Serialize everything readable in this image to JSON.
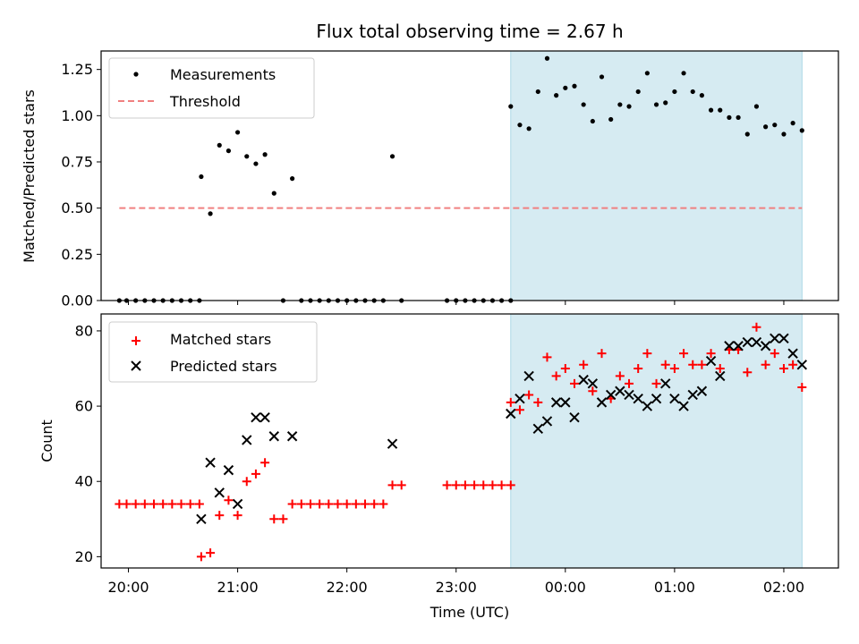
{
  "chart_data": [
    {
      "type": "scatter",
      "title": "Flux total observing time = 2.67 h",
      "ylabel": "Matched/Predicted stars",
      "xlabel": "",
      "x_unit": "time (UTC)",
      "xlim": [
        "19:45",
        "02:30"
      ],
      "ylim": [
        0,
        1.35
      ],
      "yticks": [
        "0.00",
        "0.25",
        "0.50",
        "0.75",
        "1.00",
        "1.25"
      ],
      "shaded_region": {
        "from": "23:30",
        "to": "02:10",
        "color": "#add8e6"
      },
      "legend": {
        "placement": "top-left",
        "entries": [
          "Measurements",
          "Threshold"
        ]
      },
      "grid": false,
      "series": [
        {
          "name": "Measurements",
          "marker": "dot",
          "color": "#000000",
          "points": [
            [
              "19:55",
              0
            ],
            [
              "19:59",
              0
            ],
            [
              "20:04",
              0
            ],
            [
              "20:09",
              0
            ],
            [
              "20:14",
              0
            ],
            [
              "20:19",
              0
            ],
            [
              "20:24",
              0
            ],
            [
              "20:29",
              0
            ],
            [
              "20:34",
              0
            ],
            [
              "20:39",
              0
            ],
            [
              "20:40",
              0.67
            ],
            [
              "20:45",
              0.47
            ],
            [
              "20:50",
              0.84
            ],
            [
              "20:55",
              0.81
            ],
            [
              "21:00",
              0.91
            ],
            [
              "21:05",
              0.78
            ],
            [
              "21:10",
              0.74
            ],
            [
              "21:15",
              0.79
            ],
            [
              "21:20",
              0.58
            ],
            [
              "21:25",
              0.0
            ],
            [
              "21:30",
              0.66
            ],
            [
              "21:35",
              0
            ],
            [
              "21:40",
              0
            ],
            [
              "21:45",
              0
            ],
            [
              "21:50",
              0
            ],
            [
              "21:55",
              0
            ],
            [
              "22:00",
              0
            ],
            [
              "22:05",
              0
            ],
            [
              "22:10",
              0
            ],
            [
              "22:15",
              0
            ],
            [
              "22:20",
              0
            ],
            [
              "22:25",
              0.78
            ],
            [
              "22:30",
              0
            ],
            [
              "22:55",
              0
            ],
            [
              "23:00",
              0
            ],
            [
              "23:05",
              0
            ],
            [
              "23:10",
              0
            ],
            [
              "23:15",
              0
            ],
            [
              "23:20",
              0
            ],
            [
              "23:25",
              0
            ],
            [
              "23:30",
              0
            ],
            [
              "23:30",
              1.05
            ],
            [
              "23:35",
              0.95
            ],
            [
              "23:40",
              0.93
            ],
            [
              "23:45",
              1.13
            ],
            [
              "23:50",
              1.31
            ],
            [
              "23:55",
              1.11
            ],
            [
              "00:00",
              1.15
            ],
            [
              "00:05",
              1.16
            ],
            [
              "00:10",
              1.06
            ],
            [
              "00:15",
              0.97
            ],
            [
              "00:20",
              1.21
            ],
            [
              "00:25",
              0.98
            ],
            [
              "00:30",
              1.06
            ],
            [
              "00:35",
              1.05
            ],
            [
              "00:40",
              1.13
            ],
            [
              "00:45",
              1.23
            ],
            [
              "00:50",
              1.06
            ],
            [
              "00:55",
              1.07
            ],
            [
              "01:00",
              1.13
            ],
            [
              "01:05",
              1.23
            ],
            [
              "01:10",
              1.13
            ],
            [
              "01:15",
              1.11
            ],
            [
              "01:20",
              1.03
            ],
            [
              "01:25",
              1.03
            ],
            [
              "01:30",
              0.99
            ],
            [
              "01:35",
              0.99
            ],
            [
              "01:40",
              0.9
            ],
            [
              "01:45",
              1.05
            ],
            [
              "01:50",
              0.94
            ],
            [
              "01:55",
              0.95
            ],
            [
              "02:00",
              0.9
            ],
            [
              "02:05",
              0.96
            ],
            [
              "02:10",
              0.92
            ]
          ]
        },
        {
          "name": "Threshold",
          "style": "dashed-line",
          "color": "#f08080",
          "points": [
            [
              "19:55",
              0.5
            ],
            [
              "02:10",
              0.5
            ]
          ]
        }
      ]
    },
    {
      "type": "scatter",
      "title": "",
      "ylabel": "Count",
      "xlabel": "Time (UTC)",
      "x_unit": "time (UTC)",
      "xlim": [
        "19:45",
        "02:30"
      ],
      "ylim": [
        17,
        84.5
      ],
      "yticks": [
        "20",
        "40",
        "60",
        "80"
      ],
      "xticks": [
        "20:00",
        "21:00",
        "22:00",
        "23:00",
        "00:00",
        "01:00",
        "02:00"
      ],
      "shaded_region": {
        "from": "23:30",
        "to": "02:10",
        "color": "#add8e6"
      },
      "legend": {
        "placement": "top-left",
        "entries": [
          "Matched stars",
          "Predicted stars"
        ]
      },
      "grid": false,
      "series": [
        {
          "name": "Matched stars",
          "marker": "plus",
          "color": "#ff0000",
          "points": [
            [
              "19:55",
              34
            ],
            [
              "19:59",
              34
            ],
            [
              "20:04",
              34
            ],
            [
              "20:09",
              34
            ],
            [
              "20:14",
              34
            ],
            [
              "20:19",
              34
            ],
            [
              "20:24",
              34
            ],
            [
              "20:29",
              34
            ],
            [
              "20:34",
              34
            ],
            [
              "20:39",
              34
            ],
            [
              "20:40",
              20
            ],
            [
              "20:45",
              21
            ],
            [
              "20:50",
              31
            ],
            [
              "20:55",
              35
            ],
            [
              "21:00",
              31
            ],
            [
              "21:05",
              40
            ],
            [
              "21:10",
              42
            ],
            [
              "21:15",
              45
            ],
            [
              "21:20",
              30
            ],
            [
              "21:25",
              30
            ],
            [
              "21:30",
              34
            ],
            [
              "21:35",
              34
            ],
            [
              "21:40",
              34
            ],
            [
              "21:45",
              34
            ],
            [
              "21:50",
              34
            ],
            [
              "21:55",
              34
            ],
            [
              "22:00",
              34
            ],
            [
              "22:05",
              34
            ],
            [
              "22:10",
              34
            ],
            [
              "22:15",
              34
            ],
            [
              "22:20",
              34
            ],
            [
              "22:25",
              39
            ],
            [
              "22:30",
              39
            ],
            [
              "22:55",
              39
            ],
            [
              "23:00",
              39
            ],
            [
              "23:05",
              39
            ],
            [
              "23:10",
              39
            ],
            [
              "23:15",
              39
            ],
            [
              "23:20",
              39
            ],
            [
              "23:25",
              39
            ],
            [
              "23:30",
              39
            ],
            [
              "23:30",
              61
            ],
            [
              "23:35",
              59
            ],
            [
              "23:40",
              63
            ],
            [
              "23:45",
              61
            ],
            [
              "23:50",
              73
            ],
            [
              "23:55",
              68
            ],
            [
              "00:00",
              70
            ],
            [
              "00:05",
              66
            ],
            [
              "00:10",
              71
            ],
            [
              "00:15",
              64
            ],
            [
              "00:20",
              74
            ],
            [
              "00:25",
              62
            ],
            [
              "00:30",
              68
            ],
            [
              "00:35",
              66
            ],
            [
              "00:40",
              70
            ],
            [
              "00:45",
              74
            ],
            [
              "00:50",
              66
            ],
            [
              "00:55",
              71
            ],
            [
              "01:00",
              70
            ],
            [
              "01:05",
              74
            ],
            [
              "01:10",
              71
            ],
            [
              "01:15",
              71
            ],
            [
              "01:20",
              74
            ],
            [
              "01:25",
              70
            ],
            [
              "01:30",
              75
            ],
            [
              "01:35",
              75
            ],
            [
              "01:40",
              69
            ],
            [
              "01:45",
              81
            ],
            [
              "01:50",
              71
            ],
            [
              "01:55",
              74
            ],
            [
              "02:00",
              70
            ],
            [
              "02:05",
              71
            ],
            [
              "02:10",
              65
            ]
          ]
        },
        {
          "name": "Predicted stars",
          "marker": "x",
          "color": "#000000",
          "points": [
            [
              "20:40",
              30
            ],
            [
              "20:45",
              45
            ],
            [
              "20:50",
              37
            ],
            [
              "20:55",
              43
            ],
            [
              "21:00",
              34
            ],
            [
              "21:05",
              51
            ],
            [
              "21:10",
              57
            ],
            [
              "21:15",
              57
            ],
            [
              "21:20",
              52
            ],
            [
              "21:30",
              52
            ],
            [
              "22:25",
              50
            ],
            [
              "23:30",
              58
            ],
            [
              "23:35",
              62
            ],
            [
              "23:40",
              68
            ],
            [
              "23:45",
              54
            ],
            [
              "23:50",
              56
            ],
            [
              "23:55",
              61
            ],
            [
              "00:00",
              61
            ],
            [
              "00:05",
              57
            ],
            [
              "00:10",
              67
            ],
            [
              "00:15",
              66
            ],
            [
              "00:20",
              61
            ],
            [
              "00:25",
              63
            ],
            [
              "00:30",
              64
            ],
            [
              "00:35",
              63
            ],
            [
              "00:40",
              62
            ],
            [
              "00:45",
              60
            ],
            [
              "00:50",
              62
            ],
            [
              "00:55",
              66
            ],
            [
              "01:00",
              62
            ],
            [
              "01:05",
              60
            ],
            [
              "01:10",
              63
            ],
            [
              "01:15",
              64
            ],
            [
              "01:20",
              72
            ],
            [
              "01:25",
              68
            ],
            [
              "01:30",
              76
            ],
            [
              "01:35",
              76
            ],
            [
              "01:40",
              77
            ],
            [
              "01:45",
              77
            ],
            [
              "01:50",
              76
            ],
            [
              "01:55",
              78
            ],
            [
              "02:00",
              78
            ],
            [
              "02:05",
              74
            ],
            [
              "02:10",
              71
            ]
          ]
        }
      ]
    }
  ]
}
